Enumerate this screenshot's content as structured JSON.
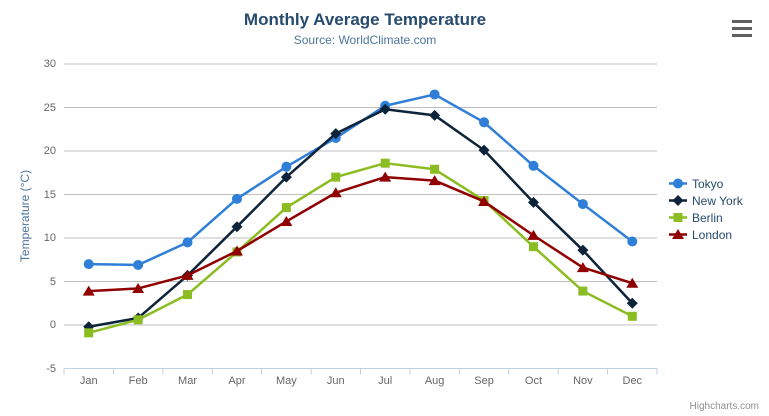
{
  "credits": "Highcharts.com",
  "context_menu_icon": "hamburger-icon",
  "colors": {
    "title": "#274b6d",
    "subtitle": "#4d759e",
    "axis_title": "#4d759e",
    "axis_labels": "#666666",
    "legend_text": "#274b6d",
    "gridline": "#c0c0c0",
    "axis_line": "#c0d0e0",
    "credits": "#909090",
    "menu_icon": "#606060"
  },
  "chart_data": {
    "type": "line",
    "title": "Monthly Average Temperature",
    "subtitle": "Source: WorldClimate.com",
    "categories": [
      "Jan",
      "Feb",
      "Mar",
      "Apr",
      "May",
      "Jun",
      "Jul",
      "Aug",
      "Sep",
      "Oct",
      "Nov",
      "Dec"
    ],
    "xlabel": "",
    "ylabel": "Temperature (°C)",
    "ylim": [
      -5,
      30
    ],
    "y_ticks": [
      -5,
      0,
      5,
      10,
      15,
      20,
      25,
      30
    ],
    "grid": "horizontal",
    "legend_position": "right",
    "series": [
      {
        "name": "Tokyo",
        "color": "#2f7ed8",
        "marker": "circle",
        "values": [
          7.0,
          6.9,
          9.5,
          14.5,
          18.2,
          21.5,
          25.2,
          26.5,
          23.3,
          18.3,
          13.9,
          9.6
        ]
      },
      {
        "name": "New York",
        "color": "#0d233a",
        "marker": "diamond",
        "values": [
          -0.2,
          0.8,
          5.7,
          11.3,
          17.0,
          22.0,
          24.8,
          24.1,
          20.1,
          14.1,
          8.6,
          2.5
        ]
      },
      {
        "name": "Berlin",
        "color": "#8bbc21",
        "marker": "square",
        "values": [
          -0.9,
          0.6,
          3.5,
          8.4,
          13.5,
          17.0,
          18.6,
          17.9,
          14.3,
          9.0,
          3.9,
          1.0
        ]
      },
      {
        "name": "London",
        "color": "#910000",
        "marker": "triangle",
        "values": [
          3.9,
          4.2,
          5.7,
          8.5,
          11.9,
          15.2,
          17.0,
          16.6,
          14.2,
          10.3,
          6.6,
          4.8
        ]
      }
    ]
  }
}
